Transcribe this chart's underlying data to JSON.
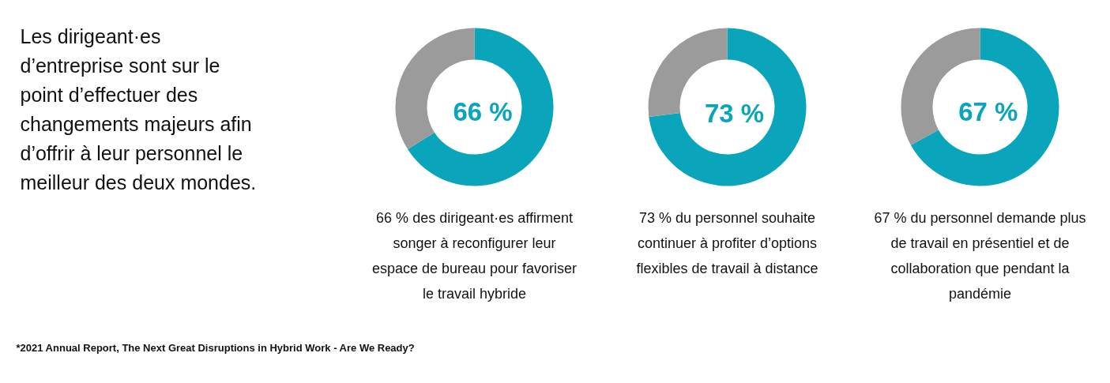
{
  "chart_data": [
    {
      "type": "other",
      "title": "Les dirigeant·es d’entreprise sont sur le point d’effectuer des changements majeurs afin d’offrir à leur personnel le meilleur des deux mondes.",
      "annotations": [
        "*2021 Annual Report, The Next Great Disruptions in Hybrid Work - Are We Ready?"
      ]
    },
    {
      "type": "donut",
      "categories": [
        null,
        null
      ],
      "values": [
        66,
        34
      ],
      "colors": [
        "#0ba5bb",
        "#9b9b9b"
      ],
      "value_labels": [
        "66 %",
        null
      ],
      "annotations": [
        "66 % des dirigeant·es affirment songer à reconfigurer leur espace de bureau pour favoriser le travail hybride"
      ]
    },
    {
      "type": "donut",
      "categories": [
        null,
        null
      ],
      "values": [
        73,
        27
      ],
      "colors": [
        "#0ba5bb",
        "#9b9b9b"
      ],
      "value_labels": [
        "73 %",
        null
      ],
      "annotations": [
        "73 % du personnel souhaite continuer à profiter d’options flexibles de travail à distance"
      ]
    },
    {
      "type": "donut",
      "categories": [
        null,
        null
      ],
      "values": [
        67,
        33
      ],
      "colors": [
        "#0ba5bb",
        "#9b9b9b"
      ],
      "value_labels": [
        "67 %",
        null
      ],
      "annotations": [
        "67 % du personnel demande plus de travail en présentiel et de collaboration que pendant la pandémie"
      ]
    }
  ]
}
